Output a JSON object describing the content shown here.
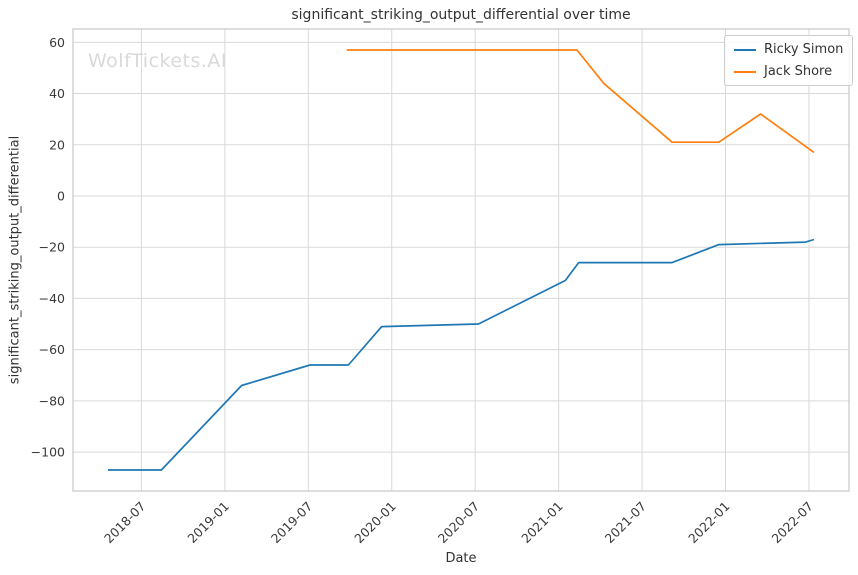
{
  "watermark": "WolfTickets.AI",
  "chart_data": {
    "type": "line",
    "title": "significant_striking_output_differential over time",
    "xlabel": "Date",
    "ylabel": "significant_striking_output_differential",
    "grid": true,
    "legend_position": "upper right",
    "xlim": [
      2018.09,
      2022.74
    ],
    "ylim": [
      -115.2,
      65.2
    ],
    "x_ticks": [
      {
        "label": "2018-07",
        "x": 2018.5
      },
      {
        "label": "2019-01",
        "x": 2019.0
      },
      {
        "label": "2019-07",
        "x": 2019.5
      },
      {
        "label": "2020-01",
        "x": 2020.0
      },
      {
        "label": "2020-07",
        "x": 2020.5
      },
      {
        "label": "2021-01",
        "x": 2021.0
      },
      {
        "label": "2021-07",
        "x": 2021.5
      },
      {
        "label": "2022-01",
        "x": 2022.0
      },
      {
        "label": "2022-07",
        "x": 2022.5
      }
    ],
    "y_ticks": [
      60,
      40,
      20,
      0,
      -20,
      -40,
      -60,
      -80,
      -100
    ],
    "series": [
      {
        "name": "Ricky Simon",
        "color": "#1f77b4",
        "points": [
          [
            2018.3,
            -107
          ],
          [
            2018.62,
            -107
          ],
          [
            2019.1,
            -74
          ],
          [
            2019.51,
            -66
          ],
          [
            2019.74,
            -66
          ],
          [
            2019.94,
            -51
          ],
          [
            2020.52,
            -50
          ],
          [
            2021.04,
            -33
          ],
          [
            2021.12,
            -26
          ],
          [
            2021.68,
            -26
          ],
          [
            2021.96,
            -19
          ],
          [
            2022.48,
            -18
          ],
          [
            2022.53,
            -17
          ]
        ]
      },
      {
        "name": "Jack Shore",
        "color": "#ff7f0e",
        "points": [
          [
            2019.73,
            57
          ],
          [
            2021.11,
            57
          ],
          [
            2021.27,
            44
          ],
          [
            2021.68,
            21
          ],
          [
            2021.96,
            21
          ],
          [
            2022.21,
            32
          ],
          [
            2022.53,
            17
          ]
        ]
      }
    ]
  }
}
